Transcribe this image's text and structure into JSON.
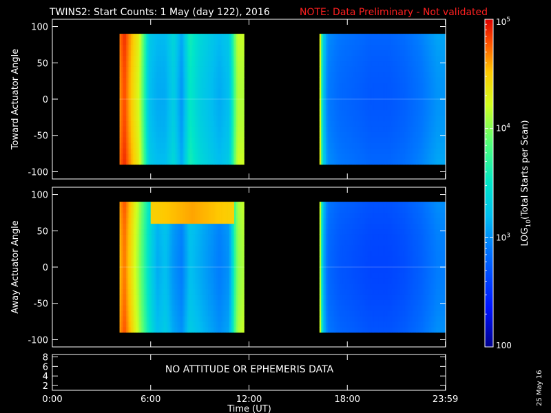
{
  "header": {
    "title": "TWINS2: Start Counts:  1 May (day 122), 2016",
    "note": "NOTE: Data Preliminary - Not validated",
    "note_color": "#ff2020"
  },
  "chart_data": [
    {
      "type": "heatmap",
      "name": "toward-panel",
      "ylabel": "Toward Actuator Angle",
      "ylim": [
        -110,
        110
      ],
      "yticks": [
        100,
        50,
        0,
        -50,
        -100
      ],
      "ytick_labels": [
        "100",
        "50",
        "0",
        "-50",
        "-100"
      ],
      "xlim_hours": [
        0,
        24
      ],
      "data_blocks": [
        {
          "start_hr": 4.1,
          "end_hr": 11.7
        },
        {
          "start_hr": 16.3,
          "end_hr": 24.0
        }
      ],
      "angle_range": [
        -90,
        90
      ],
      "band_profile": {
        "hours": [
          4.1,
          4.4,
          4.8,
          5.3,
          5.9,
          6.4,
          6.9,
          7.4,
          7.9,
          8.4,
          9.0,
          9.6,
          10.2,
          10.8,
          11.3,
          11.7,
          16.3,
          16.5,
          16.8,
          17.5,
          18.5,
          19.5,
          20.5,
          21.5,
          22.5,
          23.5,
          24.0
        ],
        "log_counts": [
          4.7,
          4.9,
          4.6,
          4.3,
          3.3,
          3.2,
          3.2,
          3.4,
          3.1,
          3.6,
          3.4,
          3.3,
          3.2,
          3.3,
          4.2,
          4.2,
          4.6,
          3.4,
          3.0,
          2.9,
          2.85,
          2.8,
          2.8,
          2.85,
          2.95,
          3.1,
          3.1
        ]
      }
    },
    {
      "type": "heatmap",
      "name": "away-panel",
      "ylabel": "Away Actuator Angle",
      "ylim": [
        -110,
        110
      ],
      "yticks": [
        100,
        50,
        0,
        -50,
        -100
      ],
      "ytick_labels": [
        "100",
        "50",
        "0",
        "-50",
        "-100"
      ],
      "xlim_hours": [
        0,
        24
      ],
      "data_blocks": [
        {
          "start_hr": 4.1,
          "end_hr": 11.7
        },
        {
          "start_hr": 16.3,
          "end_hr": 24.0
        }
      ],
      "angle_range": [
        -90,
        90
      ],
      "band_profile": {
        "hours": [
          4.1,
          4.4,
          4.8,
          5.3,
          5.9,
          6.4,
          6.9,
          7.4,
          7.9,
          8.4,
          9.0,
          9.6,
          10.2,
          10.8,
          11.3,
          11.7,
          16.3,
          16.5,
          16.8,
          17.5,
          18.5,
          19.5,
          20.5,
          21.5,
          22.5,
          23.5,
          24.0
        ],
        "log_counts": [
          4.6,
          4.8,
          4.5,
          4.1,
          3.5,
          3.2,
          3.3,
          3.1,
          3.0,
          3.3,
          3.2,
          3.1,
          3.0,
          3.1,
          4.1,
          4.2,
          4.5,
          3.3,
          2.9,
          2.8,
          2.75,
          2.7,
          2.7,
          2.75,
          2.85,
          3.0,
          3.0
        ]
      },
      "high_angle_enhancement": {
        "start_hr": 6.0,
        "end_hr": 11.0,
        "angle_min": 60,
        "angle_max": 90,
        "log_counts": 4.6
      }
    },
    {
      "type": "line",
      "name": "attitude-panel",
      "ylim": [
        1,
        8.5
      ],
      "yticks": [
        8,
        6,
        4,
        2
      ],
      "ytick_labels": [
        "8",
        "6",
        "4",
        "2"
      ],
      "message": "NO ATTITUDE OR EPHEMERIS DATA"
    }
  ],
  "x_axis": {
    "tick_hours": [
      0,
      6,
      12,
      18,
      23.983
    ],
    "tick_labels": [
      "0:00",
      "6:00",
      "12:00",
      "18:00",
      "23:59"
    ],
    "label": "Time (UT)"
  },
  "colorbar": {
    "label": "LOG10(Total Starts per Scan)",
    "log_min": 2,
    "log_max": 5,
    "ticks": [
      {
        "log": 5,
        "base": "10",
        "exp": "5"
      },
      {
        "log": 4,
        "base": "10",
        "exp": "4"
      },
      {
        "log": 3,
        "base": "10",
        "exp": "3"
      },
      {
        "log": 2,
        "base": "100",
        "exp": ""
      }
    ]
  },
  "footer": {
    "date_stamp": "25 May 16"
  }
}
